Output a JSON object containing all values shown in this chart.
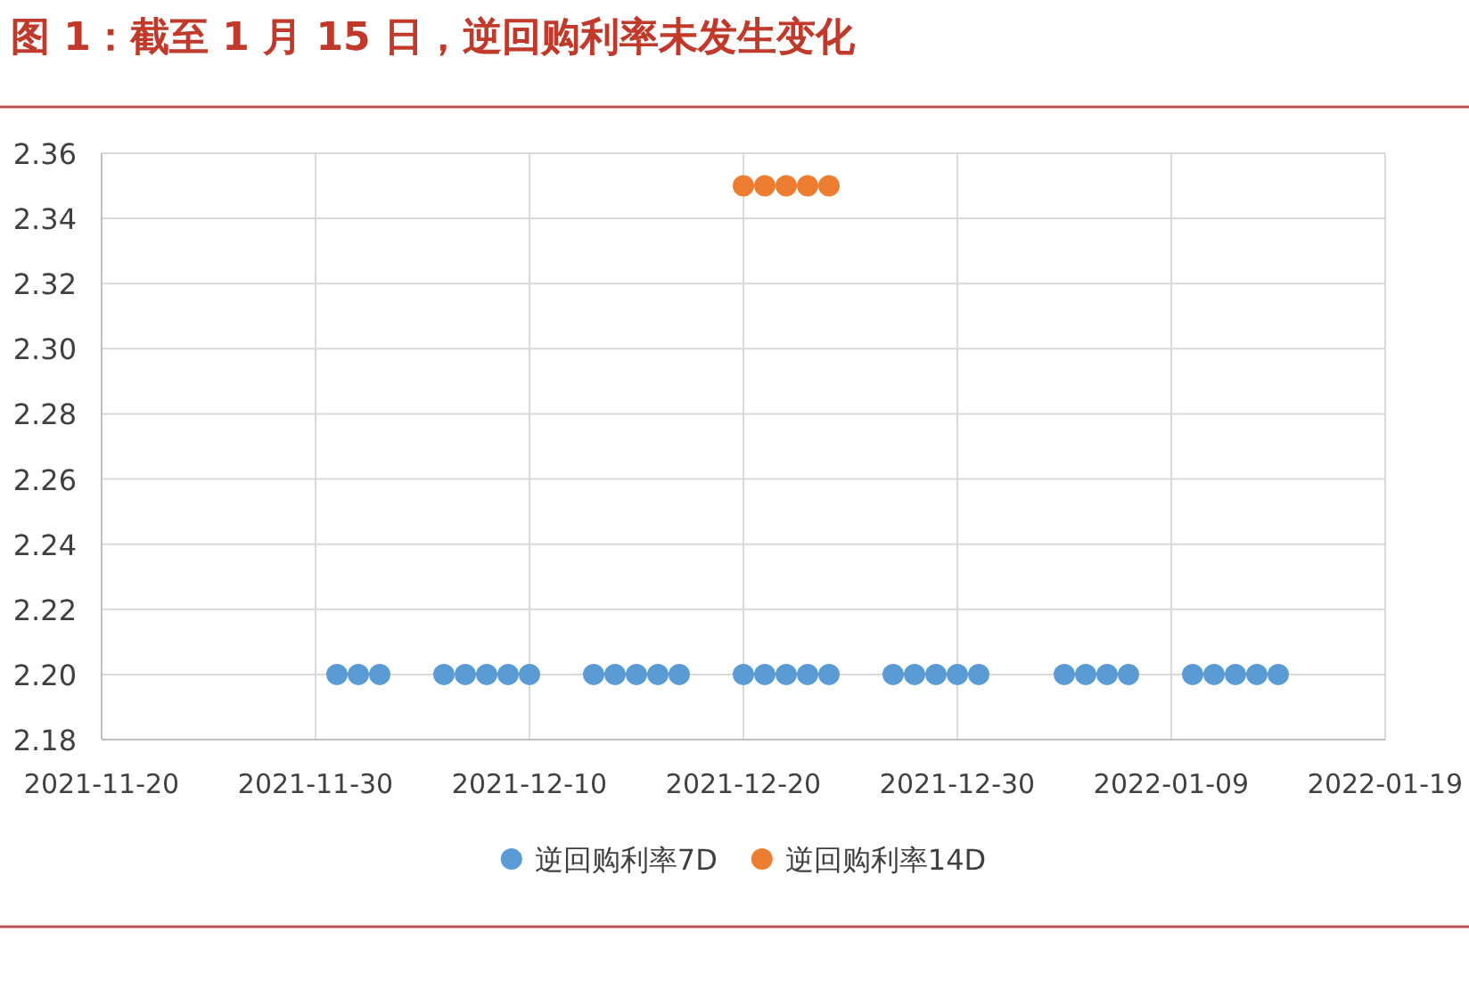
{
  "chart_data": {
    "type": "scatter",
    "title": "图 1：截至 1 月 15 日，逆回购利率未发生变化",
    "series": [
      {
        "name": "逆回购利率7D",
        "color": "#5b9bd5",
        "x": [
          "2021-12-01",
          "2021-12-02",
          "2021-12-03",
          "2021-12-06",
          "2021-12-07",
          "2021-12-08",
          "2021-12-09",
          "2021-12-10",
          "2021-12-13",
          "2021-12-14",
          "2021-12-15",
          "2021-12-16",
          "2021-12-17",
          "2021-12-20",
          "2021-12-21",
          "2021-12-22",
          "2021-12-23",
          "2021-12-24",
          "2021-12-27",
          "2021-12-28",
          "2021-12-29",
          "2021-12-30",
          "2021-12-31",
          "2022-01-04",
          "2022-01-05",
          "2022-01-06",
          "2022-01-07",
          "2022-01-10",
          "2022-01-11",
          "2022-01-12",
          "2022-01-13",
          "2022-01-14"
        ],
        "values": [
          2.2,
          2.2,
          2.2,
          2.2,
          2.2,
          2.2,
          2.2,
          2.2,
          2.2,
          2.2,
          2.2,
          2.2,
          2.2,
          2.2,
          2.2,
          2.2,
          2.2,
          2.2,
          2.2,
          2.2,
          2.2,
          2.2,
          2.2,
          2.2,
          2.2,
          2.2,
          2.2,
          2.2,
          2.2,
          2.2,
          2.2,
          2.2
        ]
      },
      {
        "name": "逆回购利率14D",
        "color": "#ed7d31",
        "x": [
          "2021-12-20",
          "2021-12-21",
          "2021-12-22",
          "2021-12-23",
          "2021-12-24"
        ],
        "values": [
          2.35,
          2.35,
          2.35,
          2.35,
          2.35
        ]
      }
    ],
    "xlim": [
      "2021-11-20",
      "2022-01-19"
    ],
    "xticks": [
      "2021-11-20",
      "2021-11-30",
      "2021-12-10",
      "2021-12-20",
      "2021-12-30",
      "2022-01-09",
      "2022-01-19"
    ],
    "ylim": [
      2.18,
      2.36
    ],
    "yticks": [
      {
        "value": 2.18,
        "label": "2.18"
      },
      {
        "value": 2.2,
        "label": "2.20"
      },
      {
        "value": 2.22,
        "label": "2.22"
      },
      {
        "value": 2.24,
        "label": "2.24"
      },
      {
        "value": 2.26,
        "label": "2.26"
      },
      {
        "value": 2.28,
        "label": "2.28"
      },
      {
        "value": 2.3,
        "label": "2.30"
      },
      {
        "value": 2.32,
        "label": "2.32"
      },
      {
        "value": 2.34,
        "label": "2.34"
      },
      {
        "value": 2.36,
        "label": "2.36"
      }
    ],
    "grid": true,
    "legend": "bottom",
    "marker": "circle"
  }
}
